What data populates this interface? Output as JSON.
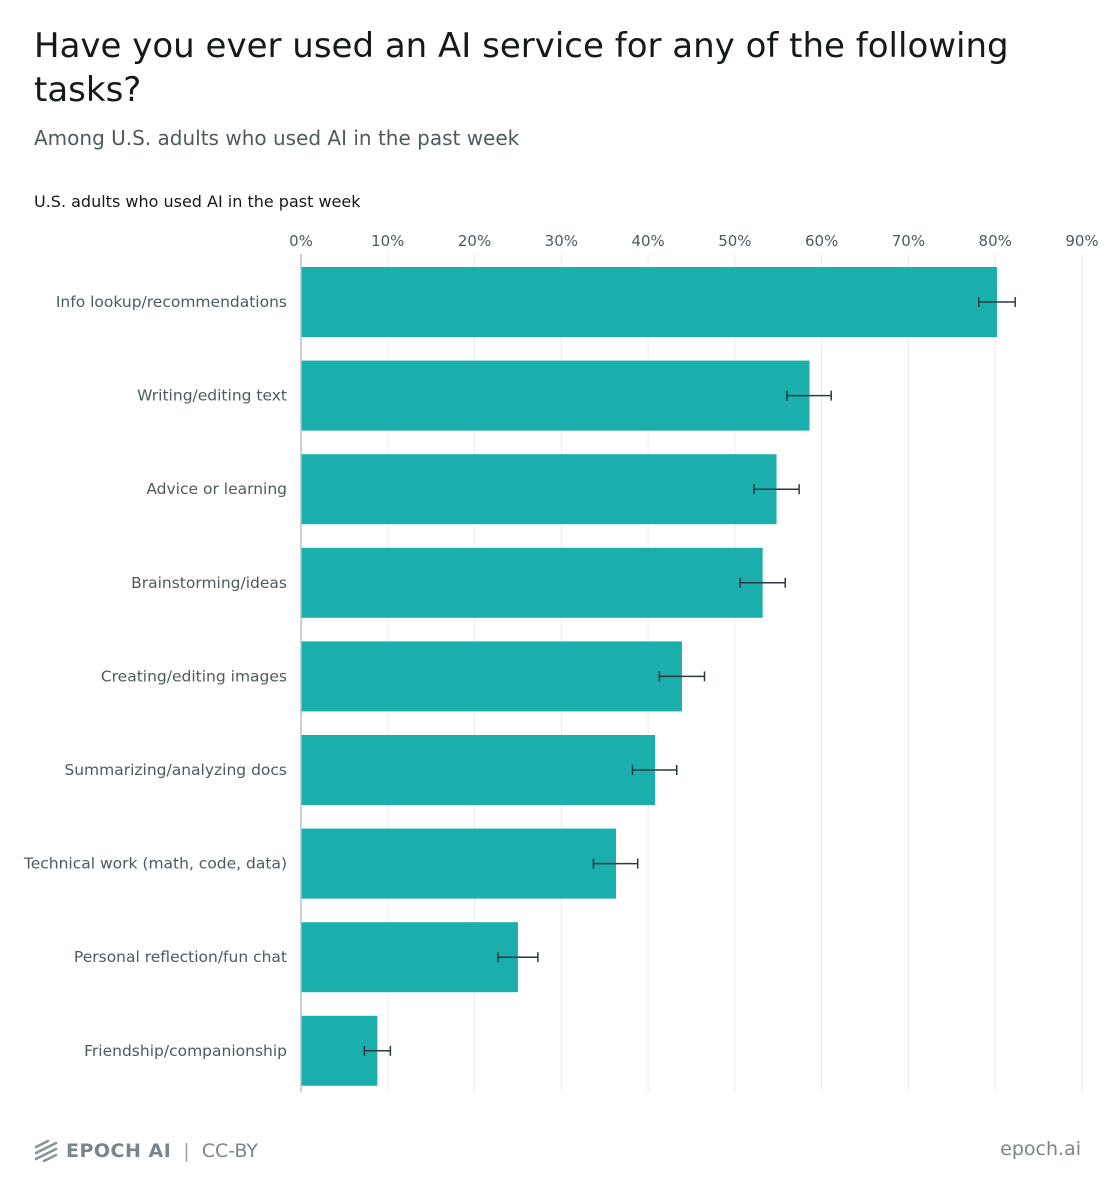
{
  "header": {
    "title": "Have you ever used an AI service for any of the following tasks?",
    "subtitle": "Among U.S. adults who used AI in the past week",
    "panel_label": "U.S. adults who used AI in the past week"
  },
  "footer": {
    "brand": "EPOCH AI",
    "separator": "|",
    "license": "CC-BY",
    "site": "epoch.ai",
    "logo_icon": "epoch-logo-icon"
  },
  "colors": {
    "bar": "#1aaeac",
    "error_bar": "#2b3a40",
    "grid": "#e6eef0",
    "axis": "#b8c2c5"
  },
  "chart_data": {
    "type": "bar",
    "orientation": "horizontal",
    "title": "Have you ever used an AI service for any of the following tasks?",
    "subtitle": "Among U.S. adults who used AI in the past week",
    "xlabel": "",
    "ylabel": "",
    "xlim": [
      0,
      90
    ],
    "x_ticks": [
      0,
      10,
      20,
      30,
      40,
      50,
      60,
      70,
      80,
      90
    ],
    "x_tick_labels": [
      "0%",
      "10%",
      "20%",
      "30%",
      "40%",
      "50%",
      "60%",
      "70%",
      "80%",
      "90%"
    ],
    "grid": true,
    "legend": "none",
    "categories": [
      "Info lookup/recommendations",
      "Writing/editing text",
      "Advice or learning",
      "Brainstorming/ideas",
      "Creating/editing images",
      "Summarizing/analyzing docs",
      "Technical work (math, code, data)",
      "Personal reflection/fun chat",
      "Friendship/companionship"
    ],
    "values": [
      80.2,
      58.6,
      54.8,
      53.2,
      43.9,
      40.8,
      36.3,
      25.0,
      8.8
    ],
    "error_low": [
      78.1,
      56.0,
      52.2,
      50.6,
      41.3,
      38.2,
      33.7,
      22.7,
      7.3
    ],
    "error_high": [
      82.3,
      61.1,
      57.4,
      55.8,
      46.5,
      43.3,
      38.8,
      27.3,
      10.3
    ]
  }
}
